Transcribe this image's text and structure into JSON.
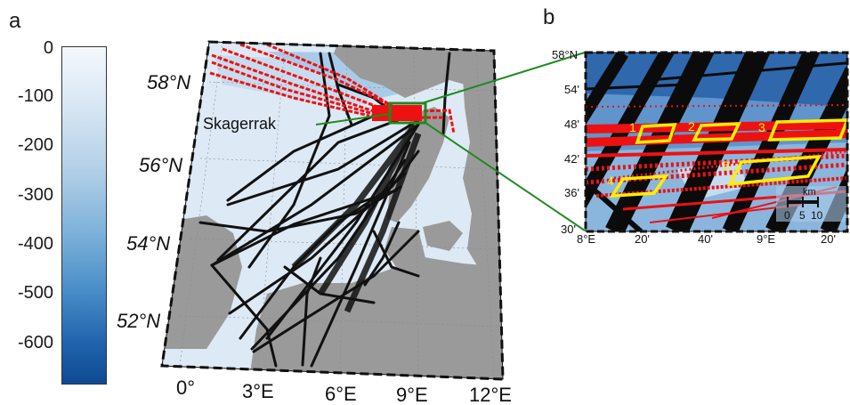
{
  "panels": {
    "a": "a",
    "b": "b"
  },
  "colorbar": {
    "ticks": [
      "0",
      "-100",
      "-200",
      "-300",
      "-400",
      "-500",
      "-600"
    ],
    "colors": [
      "#f4f8fd",
      "#b4d0e8",
      "#4a8ec9",
      "#0e4a93"
    ]
  },
  "map_a": {
    "lat_labels": [
      "58°N",
      "56°N",
      "54°N",
      "52°N"
    ],
    "lon_labels": [
      "0°",
      "3°E",
      "6°E",
      "9°E",
      "12°E"
    ],
    "annotation": "Skagerrak",
    "colors": {
      "land": "#9a9a9a",
      "sea": "#dde9f5",
      "tracks": "#111111",
      "red_tracks": "#ee1111",
      "box": "#1f8a1f"
    }
  },
  "map_b": {
    "lat_labels": [
      "58°N",
      "54'",
      "48'",
      "42'",
      "36'",
      "30'"
    ],
    "lon_labels": [
      "8°E",
      "20'",
      "40'",
      "9°E",
      "20'"
    ],
    "areas": [
      "1",
      "2",
      "3",
      "4",
      "5"
    ],
    "scale": {
      "unit": "km",
      "ticks": [
        "0",
        "5",
        "10"
      ]
    },
    "colors": {
      "area_outline": "#ffee00"
    }
  }
}
